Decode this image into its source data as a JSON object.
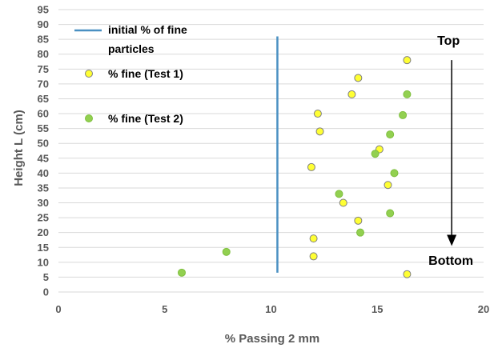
{
  "chart_data": {
    "type": "scatter",
    "xlabel": "% Passing 2 mm",
    "ylabel": "Height L (cm)",
    "xlim": [
      0,
      20
    ],
    "ylim": [
      0,
      95
    ],
    "x_ticks": [
      "0",
      "5",
      "10",
      "15",
      "20"
    ],
    "y_ticks": [
      "0",
      "5",
      "10",
      "15",
      "20",
      "25",
      "30",
      "35",
      "40",
      "45",
      "50",
      "55",
      "60",
      "65",
      "70",
      "75",
      "80",
      "85",
      "90",
      "95"
    ],
    "grid": "horizontal",
    "legend_placement": "top-left",
    "series": [
      {
        "name": "initial % of fine particles",
        "kind": "line",
        "color": "#4a90c2",
        "points": [
          [
            10.3,
            6.5
          ],
          [
            10.3,
            86
          ]
        ]
      },
      {
        "name": "% fine (Test 1)",
        "kind": "marker",
        "color": "#ffff33",
        "edge_color": "#7f7f7f",
        "points": [
          [
            16.4,
            78
          ],
          [
            14.1,
            72
          ],
          [
            13.8,
            66.5
          ],
          [
            12.2,
            60
          ],
          [
            12.3,
            54
          ],
          [
            15.1,
            48
          ],
          [
            11.9,
            42
          ],
          [
            15.5,
            36
          ],
          [
            13.4,
            30
          ],
          [
            14.1,
            24
          ],
          [
            12.0,
            18
          ],
          [
            12.0,
            12
          ],
          [
            16.4,
            6
          ]
        ]
      },
      {
        "name": "% fine (Test 2)",
        "kind": "marker",
        "color": "#92d050",
        "edge_color": "#7fbf3f",
        "points": [
          [
            16.4,
            66.5
          ],
          [
            16.2,
            59.5
          ],
          [
            15.6,
            53
          ],
          [
            14.9,
            46.5
          ],
          [
            15.8,
            40
          ],
          [
            13.2,
            33
          ],
          [
            15.6,
            26.5
          ],
          [
            14.2,
            20
          ],
          [
            7.9,
            13.5
          ],
          [
            5.8,
            6.5
          ]
        ]
      }
    ],
    "annotations": {
      "top_label": "Top",
      "bottom_label": "Bottom",
      "arrow": {
        "x": 18.5,
        "y_from": 78,
        "y_to": 16
      }
    }
  }
}
